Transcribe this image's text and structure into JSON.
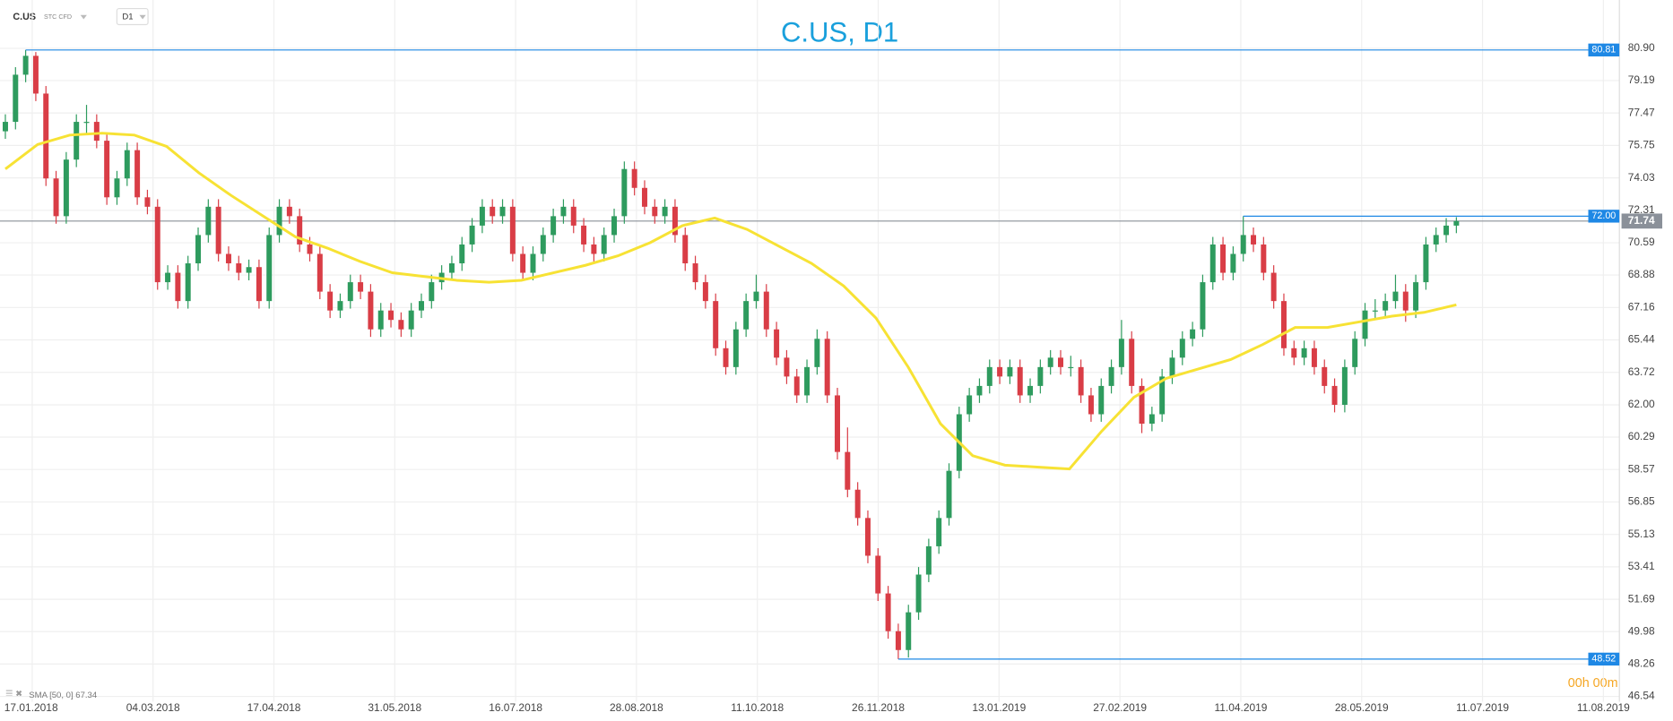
{
  "header": {
    "symbol": "C.US",
    "instrument": "STC CFD",
    "timeframe": "D1"
  },
  "chart_data": {
    "type": "candlestick",
    "title": "C.US, D1",
    "up_color": "#2e9b5e",
    "down_color": "#d93d46",
    "open": [
      76.5,
      77,
      79.5,
      80.5,
      78.5,
      74,
      72,
      75,
      77,
      77,
      76,
      73,
      74,
      75.5,
      73,
      72.5,
      68.5,
      69,
      67.5,
      69.5,
      71,
      72.5,
      70,
      69.5,
      69,
      69.3,
      67.5,
      71,
      72.5,
      72,
      70.5,
      70,
      68,
      67,
      67.5,
      68.5,
      68,
      66,
      67,
      66.5,
      66,
      67,
      67.5,
      68.5,
      69,
      69.5,
      70.5,
      71.5,
      72.5,
      72,
      72.5,
      70,
      69,
      70,
      71,
      72,
      72.5,
      71.5,
      70.5,
      70,
      71,
      72,
      74.5,
      73.5,
      72.5,
      72,
      72.5,
      71,
      69.5,
      68.5,
      67.5,
      65,
      64,
      66,
      67.5,
      68,
      66,
      64.5,
      63.5,
      62.5,
      64,
      65.5,
      62.5,
      59.5,
      57.5,
      56,
      54,
      52,
      50,
      49,
      51,
      53,
      54.5,
      56,
      58.5,
      61.5,
      62.5,
      63,
      64,
      63.5,
      64,
      62.5,
      63,
      64,
      64.5,
      64,
      64,
      62.5,
      61.5,
      63,
      64,
      65.5,
      63,
      61,
      61.5,
      63.5,
      64.5,
      65.5,
      66,
      68.5,
      70.5,
      69,
      70,
      71,
      70.5,
      69,
      67.5,
      65,
      64.5,
      65,
      64,
      63,
      62,
      64,
      65.5,
      67,
      67,
      67.5,
      68,
      67,
      68.5,
      70.5,
      71,
      71.5
    ],
    "high": [
      77.4,
      79.9,
      80.81,
      80.7,
      78.9,
      74.4,
      75.4,
      77.4,
      77.9,
      77.4,
      76.4,
      74.4,
      75.9,
      75.9,
      73.4,
      72.9,
      69.4,
      69.4,
      69.9,
      71.4,
      72.9,
      72.9,
      70.4,
      69.9,
      69.7,
      69.7,
      71.4,
      72.9,
      72.9,
      72.4,
      70.9,
      70.4,
      68.4,
      67.9,
      68.9,
      68.9,
      68.4,
      67.4,
      67.4,
      66.9,
      67.4,
      67.9,
      68.9,
      69.4,
      69.9,
      70.9,
      71.9,
      72.9,
      72.9,
      72.9,
      72.9,
      70.4,
      70.4,
      71.4,
      72.4,
      72.9,
      72.9,
      71.9,
      70.9,
      71.4,
      72.4,
      74.9,
      74.9,
      73.9,
      72.9,
      72.9,
      72.9,
      71.4,
      69.9,
      68.9,
      67.9,
      65.4,
      66.4,
      67.9,
      68.9,
      68.4,
      66.4,
      64.9,
      63.9,
      64.4,
      66,
      65.9,
      62.9,
      60.8,
      57.9,
      56.4,
      54.4,
      52.4,
      50.4,
      51.4,
      53.4,
      54.9,
      56.4,
      58.9,
      61.9,
      62.9,
      63.4,
      64.4,
      64.4,
      64.4,
      64.4,
      63.4,
      64.4,
      64.9,
      64.9,
      64.6,
      64.4,
      62.9,
      63.4,
      64.4,
      66.5,
      65.9,
      63.4,
      61.9,
      63.9,
      64.9,
      65.9,
      66.4,
      68.9,
      70.9,
      70.9,
      70.4,
      72,
      71.4,
      70.9,
      69.4,
      67.9,
      65.4,
      65.4,
      65.4,
      64.4,
      63.4,
      64.4,
      65.9,
      67.4,
      67.6,
      67.9,
      68.9,
      68.4,
      68.9,
      70.9,
      71.4,
      71.9,
      71.95
    ],
    "low": [
      76.1,
      76.6,
      79.1,
      78.1,
      73.6,
      71.6,
      71.6,
      74.6,
      76.4,
      75.6,
      72.6,
      72.6,
      73.6,
      72.6,
      72.1,
      68.1,
      68.1,
      67.1,
      67.1,
      69.1,
      70.6,
      69.6,
      69.1,
      68.6,
      68.6,
      67.1,
      67.1,
      70.6,
      71.6,
      70.1,
      69.6,
      67.6,
      66.6,
      66.6,
      67.1,
      67.6,
      65.6,
      65.6,
      66.1,
      65.6,
      65.6,
      66.6,
      67.1,
      68.1,
      68.6,
      69.1,
      70.1,
      71.1,
      71.6,
      71.6,
      69.6,
      68.6,
      68.6,
      69.6,
      70.6,
      71.6,
      71.1,
      70.1,
      69.6,
      69.6,
      70.6,
      71.6,
      73.1,
      72.1,
      71.6,
      71.6,
      70.6,
      69.1,
      68.1,
      67.1,
      64.6,
      63.6,
      63.6,
      65.6,
      67.1,
      65.6,
      64.1,
      63.1,
      62.1,
      62.1,
      63.6,
      62.1,
      59.1,
      57.1,
      55.6,
      53.6,
      51.6,
      49.6,
      48.52,
      48.6,
      50.6,
      52.6,
      54.1,
      55.6,
      58.1,
      61.1,
      62.1,
      62.6,
      63.1,
      63.1,
      62.1,
      62.1,
      62.6,
      63.6,
      63.6,
      63.5,
      62.1,
      61.1,
      61.1,
      62.6,
      63.6,
      62.6,
      60.5,
      60.6,
      61.1,
      63.1,
      64.1,
      65.1,
      65.6,
      68.1,
      68.6,
      68.6,
      69.6,
      70.1,
      68.6,
      67.1,
      64.6,
      64.1,
      64.1,
      63.6,
      62.6,
      61.6,
      61.6,
      63.6,
      65.1,
      66.5,
      66.6,
      67.1,
      66.4,
      66.6,
      68.1,
      70.1,
      70.6,
      71.1
    ],
    "close": [
      77,
      79.5,
      80.5,
      78.5,
      74,
      72,
      75,
      77,
      77,
      76,
      73,
      74,
      75.5,
      73,
      72.5,
      68.5,
      69,
      67.5,
      69.5,
      71,
      72.5,
      70,
      69.5,
      69,
      69.3,
      67.5,
      71,
      72.5,
      72,
      70.5,
      70,
      68,
      67,
      67.5,
      68.5,
      68,
      66,
      67,
      66.5,
      66,
      67,
      67.5,
      68.5,
      69,
      69.5,
      70.5,
      71.5,
      72.5,
      72,
      72.5,
      70,
      69,
      70,
      71,
      72,
      72.5,
      71.5,
      70.5,
      70,
      71,
      72,
      74.5,
      73.5,
      72.5,
      72,
      72.5,
      71,
      69.5,
      68.5,
      67.5,
      65,
      64,
      66,
      67.5,
      68,
      66,
      64.5,
      63.5,
      62.5,
      64,
      65.5,
      62.5,
      59.5,
      57.5,
      56,
      54,
      52,
      50,
      49,
      51,
      53,
      54.5,
      56,
      58.5,
      61.5,
      62.5,
      63,
      64,
      63.5,
      64,
      62.5,
      63,
      64,
      64.5,
      64,
      64,
      62.5,
      61.5,
      63,
      64,
      65.5,
      63,
      61,
      61.5,
      63.5,
      64.5,
      65.5,
      66,
      68.5,
      70.5,
      69,
      70,
      71,
      70.5,
      69,
      67.5,
      65,
      64.5,
      65,
      64,
      63,
      62,
      64,
      65.5,
      67,
      67,
      67.5,
      68,
      67,
      68.5,
      70.5,
      71,
      71.5,
      71.74
    ],
    "sma": {
      "name": "SMA [50, 0] 67.34",
      "color": "#f7e234",
      "values": [
        74.5,
        75.8,
        76.3,
        76.4,
        76.3,
        75.7,
        74.3,
        73.1,
        72.0,
        70.9,
        70.3,
        69.6,
        69.0,
        68.8,
        68.6,
        68.5,
        68.6,
        69.0,
        69.4,
        69.9,
        70.6,
        71.5,
        71.9,
        71.3,
        70.4,
        69.5,
        68.3,
        66.6,
        64.0,
        61.0,
        59.3,
        58.8,
        58.7,
        58.6,
        60.6,
        62.4,
        63.4,
        63.9,
        64.4,
        65.2,
        66.1,
        66.1,
        66.4,
        66.7,
        66.9,
        67.3
      ]
    },
    "levels": [
      80.81,
      {
        "value": 72,
        "label": "72.00"
      },
      48.52
    ],
    "level_color": "#1e88e5",
    "last_price": 71.74,
    "ylim": [
      46.26,
      83.46
    ],
    "yticks": [
      {
        "value": 80.9,
        "label": "80.90"
      },
      79.19,
      77.47,
      75.75,
      74.03,
      72.31,
      70.59,
      68.88,
      67.16,
      65.44,
      63.72,
      {
        "value": 62,
        "label": "62.00"
      },
      60.29,
      58.57,
      56.85,
      55.13,
      53.41,
      51.69,
      49.98,
      48.26,
      46.54
    ],
    "x_labels": [
      "17.01.2018",
      "04.03.2018",
      "17.04.2018",
      "31.05.2018",
      "16.07.2018",
      "28.08.2018",
      "11.10.2018",
      "26.11.2018",
      "13.01.2019",
      "27.02.2019",
      "11.04.2019",
      "28.05.2019",
      "11.07.2019",
      "11.08.2019"
    ],
    "grid": true,
    "timer": "00h 00m"
  }
}
